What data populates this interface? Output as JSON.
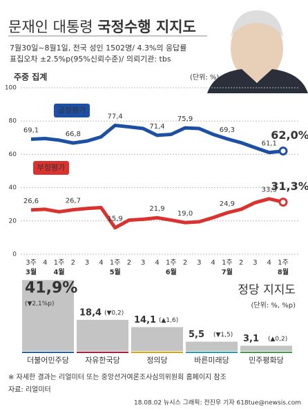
{
  "header": {
    "title_plain": "문재인 대통령",
    "title_bold": "국정수행 지지도",
    "subtitle": [
      "7월30일~8월1일, 전국 성인 1502명/ 4.3%의 응답률",
      "표집오차 ±2.5%p(95%신뢰수준)/ 의뢰기관: tbs"
    ]
  },
  "chart_data": [
    {
      "type": "line",
      "title": "주중 집계",
      "unit": "(단위: %)",
      "categories": [
        "3주",
        "4",
        "1주",
        "2",
        "3",
        "4",
        "1주",
        "2",
        "3",
        "4",
        "1주",
        "2",
        "3",
        "4",
        "1주",
        "2",
        "3",
        "4",
        "1주"
      ],
      "months": [
        "3월",
        null,
        "4월",
        null,
        null,
        null,
        "5월",
        null,
        null,
        null,
        "6월",
        null,
        null,
        null,
        "7월",
        null,
        null,
        null,
        "8월"
      ],
      "ylim": [
        0,
        100
      ],
      "yticks": [
        0,
        20,
        40,
        60,
        80,
        100
      ],
      "grid": true,
      "series": [
        {
          "name": "긍정평가",
          "color": "#1d4fa3",
          "values": [
            69.1,
            69.5,
            68.5,
            66.8,
            68,
            70.5,
            77.4,
            76.5,
            75.5,
            71.4,
            72,
            75.9,
            75.5,
            72,
            69.3,
            67,
            64,
            61.1,
            62.0
          ],
          "value_labels": [
            "69,1",
            null,
            null,
            "66,8",
            null,
            null,
            "77,4",
            null,
            null,
            "71,4",
            null,
            "75,9",
            null,
            null,
            "69,3",
            null,
            null,
            "61,1",
            "62,0%"
          ]
        },
        {
          "name": "부정평가",
          "color": "#d9332f",
          "values": [
            26.6,
            27,
            25.5,
            26.7,
            27.5,
            28,
            15.9,
            20.5,
            21,
            21.9,
            20.5,
            19.0,
            19.5,
            22,
            24.9,
            27,
            31,
            33.3,
            31.3
          ],
          "value_labels": [
            "26,6",
            null,
            null,
            "26,7",
            null,
            null,
            "15,9",
            null,
            null,
            "21,9",
            null,
            "19,0",
            null,
            null,
            "24,9",
            null,
            null,
            "33,3",
            "31,3%"
          ]
        }
      ]
    },
    {
      "type": "bar",
      "title": "정당 지지도",
      "unit": "(단위: %, %p)",
      "categories": [
        "더불어민주당",
        "자유한국당",
        "정의당",
        "바른미래당",
        "민주평화당"
      ],
      "values": [
        41.9,
        18.4,
        14.1,
        5.5,
        3.1
      ],
      "value_labels": [
        "41,9%",
        "18,4",
        "14,1",
        "5,5",
        "3,1"
      ],
      "changes": [
        "(▼2,1%p)",
        "(▼0,2)",
        "(▲1,6)",
        "(▼1,5)",
        "(▲0,2)"
      ],
      "colors": [
        "#1d5bb8",
        "#c8102e",
        "#e0a000",
        "#1a9fb0",
        "#3c9a46"
      ]
    }
  ],
  "footer": {
    "note": "※ 자세한 결과는 리얼미터 또는 중앙선거여론조사심의위원회 홈페이지 참조",
    "source": "자료: 리얼미터",
    "credit": "18.08.02 뉴시스 그래픽: 전진우 기자 618tue@newsis.com"
  }
}
